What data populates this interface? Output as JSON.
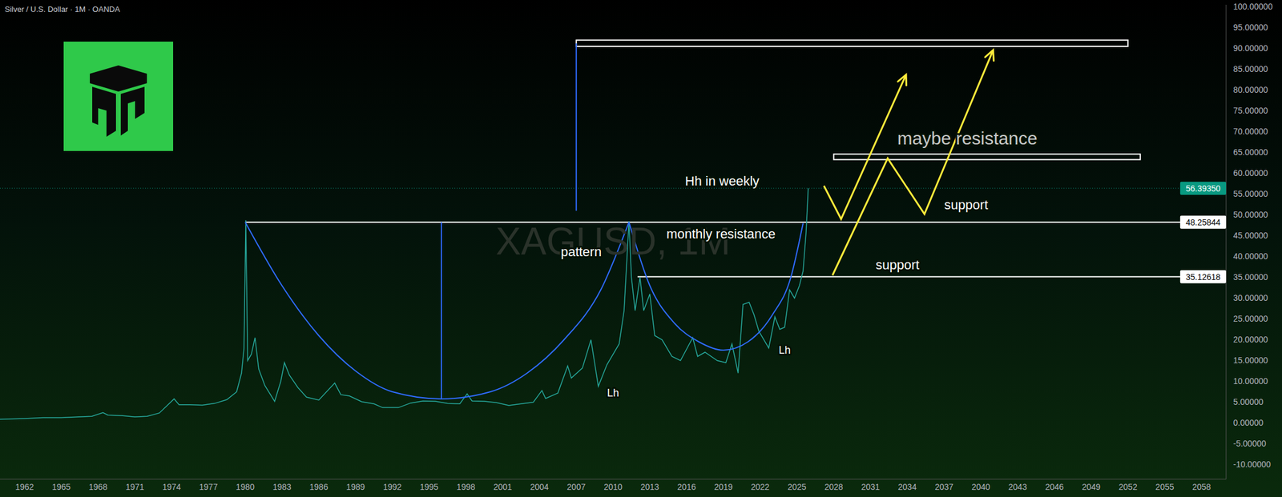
{
  "chart_data": {
    "type": "line",
    "title": "Silver / U.S. Dollar · 1M · OANDA",
    "watermark": "XAGUSD, 1M",
    "x": [
      1960,
      1962,
      1963.5,
      1965,
      1967.5,
      1968.4,
      1968.8,
      1970,
      1971,
      1972,
      1973,
      1974.2,
      1974.6,
      1975.5,
      1976.5,
      1977.5,
      1978.5,
      1979.3,
      1979.7,
      1979.9,
      1980.05,
      1980.2,
      1980.5,
      1980.8,
      1981.1,
      1981.6,
      1982.4,
      1982.9,
      1983.2,
      1983.6,
      1984.3,
      1985,
      1986,
      1987.3,
      1987.8,
      1988.5,
      1989.5,
      1990.5,
      1991.2,
      1992.5,
      1993.5,
      1994.5,
      1995.5,
      1996.5,
      1997.5,
      1998.1,
      1998.5,
      1999.5,
      2000.5,
      2001.5,
      2002.5,
      2003.5,
      2004.2,
      2004.5,
      2005.5,
      2006.3,
      2006.6,
      2007.5,
      2008.2,
      2008.8,
      2009.5,
      2010.5,
      2010.9,
      2011.3,
      2011.5,
      2011.8,
      2012.2,
      2012.5,
      2013,
      2013.4,
      2014,
      2014.8,
      2015.5,
      2016.5,
      2016.9,
      2017.5,
      2018.5,
      2019.2,
      2019.7,
      2020.2,
      2020.6,
      2021.1,
      2021.5,
      2021.9,
      2022.7,
      2023.2,
      2023.6,
      2024,
      2024.4,
      2024.8,
      2025.2,
      2025.5,
      2025.75,
      2025.92
    ],
    "values": [
      0.91,
      1.08,
      1.29,
      1.29,
      1.6,
      2.5,
      1.9,
      1.75,
      1.45,
      1.6,
      2.4,
      5.8,
      4.4,
      4.4,
      4.3,
      4.7,
      5.6,
      7.5,
      12,
      18,
      48.7,
      15,
      16.5,
      20.5,
      13,
      9,
      5.2,
      10,
      14.5,
      11.5,
      8.5,
      6.2,
      5.5,
      9.6,
      6.8,
      6.5,
      5.1,
      4.6,
      3.7,
      3.7,
      4.8,
      5.3,
      5.2,
      4.7,
      4.6,
      7,
      5.3,
      5.2,
      4.9,
      4.2,
      4.6,
      5,
      7.8,
      5.9,
      7.2,
      13.7,
      10.8,
      13.2,
      20,
      8.8,
      14,
      19,
      27,
      48.5,
      35,
      27,
      35,
      27,
      31,
      21,
      20,
      16,
      15,
      20.5,
      16,
      17,
      15,
      14.5,
      19,
      12,
      28.5,
      29,
      26,
      22,
      18,
      25.5,
      22.5,
      23,
      32,
      30,
      33,
      36.5,
      46,
      56.3935
    ],
    "color": "#26a69a",
    "xlim": [
      1960,
      2060
    ],
    "xticks": [
      1962,
      1965,
      1968,
      1971,
      1974,
      1977,
      1980,
      1983,
      1986,
      1989,
      1992,
      1995,
      1998,
      2001,
      2004,
      2007,
      2010,
      2013,
      2016,
      2019,
      2022,
      2025,
      2028,
      2031,
      2034,
      2037,
      2040,
      2043,
      2046,
      2049,
      2052,
      2055,
      2058
    ],
    "ylim": [
      -13.5,
      100.5
    ],
    "yticks": [
      {
        "value": -10,
        "label": "-10.00000"
      },
      {
        "value": -5,
        "label": "-5.00000"
      },
      {
        "value": 0,
        "label": "0.00000"
      },
      {
        "value": 5,
        "label": "5.00000"
      },
      {
        "value": 10,
        "label": "10.00000"
      },
      {
        "value": 15,
        "label": "15.00000"
      },
      {
        "value": 20,
        "label": "20.00000"
      },
      {
        "value": 25,
        "label": "25.00000"
      },
      {
        "value": 30,
        "label": "30.00000"
      },
      {
        "value": 35,
        "label": "35.00000"
      },
      {
        "value": 40,
        "label": "40.00000"
      },
      {
        "value": 45,
        "label": "45.00000"
      },
      {
        "value": 50,
        "label": "50.00000"
      },
      {
        "value": 55,
        "label": "55.00000"
      },
      {
        "value": 60,
        "label": "60.00000"
      },
      {
        "value": 65,
        "label": "65.00000"
      },
      {
        "value": 70,
        "label": "70.00000"
      },
      {
        "value": 75,
        "label": "75.00000"
      },
      {
        "value": 80,
        "label": "80.00000"
      },
      {
        "value": 85,
        "label": "85.00000"
      },
      {
        "value": 90,
        "label": "90.00000"
      },
      {
        "value": 95,
        "label": "95.00000"
      },
      {
        "value": 100,
        "label": "100.00000"
      }
    ],
    "grid": false,
    "price_labels": [
      {
        "value": 56.3935,
        "label": "56.39350",
        "color": "#089981",
        "line_style": "dotted"
      },
      {
        "value": 48.25844,
        "label": "48.25844",
        "color": "#ffffff"
      },
      {
        "value": 35.12618,
        "label": "35.12618",
        "color": "#ffffff"
      }
    ],
    "levels": [
      {
        "y": 48.25844,
        "x": [
          1980,
          2060
        ],
        "color": "#ffffff"
      },
      {
        "y": 35.12618,
        "x": [
          2012,
          2060
        ],
        "color": "#ffffff"
      }
    ],
    "zones": [
      {
        "x": [
          2007,
          2052
        ],
        "y": [
          90.5,
          92
        ],
        "color": "#ffffff"
      },
      {
        "x": [
          2028,
          2053
        ],
        "y": [
          63.3,
          64.6
        ],
        "color": "#ffffff"
      }
    ],
    "drawings": [
      {
        "type": "curve",
        "color": "#2f6bff",
        "points": [
          [
            1980,
            48.26
          ],
          [
            1983,
            33
          ],
          [
            1986,
            21
          ],
          [
            1989,
            12.5
          ],
          [
            1992,
            7.5
          ],
          [
            1996,
            5.8
          ],
          [
            2000,
            7.5
          ],
          [
            2003,
            12
          ],
          [
            2006,
            20
          ],
          [
            2009,
            32
          ],
          [
            2011.3,
            48.26
          ]
        ]
      },
      {
        "type": "curve",
        "color": "#2f6bff",
        "points": [
          [
            2011.3,
            48.26
          ],
          [
            2013,
            33
          ],
          [
            2015,
            24
          ],
          [
            2017,
            19.5
          ],
          [
            2019,
            17.5
          ],
          [
            2021,
            19.5
          ],
          [
            2023,
            26
          ],
          [
            2024.5,
            35
          ],
          [
            2025.5,
            48
          ]
        ]
      },
      {
        "type": "line",
        "color": "#2f6bff",
        "points": [
          [
            1996,
            5.8
          ],
          [
            1996,
            48.26
          ]
        ]
      },
      {
        "type": "line",
        "color": "#2f6bff",
        "points": [
          [
            2007,
            51
          ],
          [
            2007,
            91.2
          ]
        ]
      },
      {
        "type": "line",
        "color": "#ffeb3b",
        "marker": "arrow",
        "points": [
          [
            2027.2,
            57
          ],
          [
            2028.6,
            49
          ],
          [
            2033.9,
            83.7
          ]
        ]
      },
      {
        "type": "line",
        "color": "#ffeb3b",
        "marker": "arrow",
        "points": [
          [
            2027.9,
            35.5
          ],
          [
            2032.4,
            63.6
          ],
          [
            2035.4,
            50.2
          ],
          [
            2041,
            89.6
          ]
        ]
      }
    ],
    "annotations": [
      {
        "text": "Hh in weekly",
        "x": 2018.9,
        "y": 58.2,
        "color": "#ffffff"
      },
      {
        "text": "maybe resistance",
        "x": 2038.9,
        "y": 68.5,
        "color": "#c8c8c8"
      },
      {
        "text": "support",
        "x": 2038.8,
        "y": 52.5,
        "color": "#ffffff"
      },
      {
        "text": "support",
        "x": 2033.2,
        "y": 38,
        "color": "#ffffff"
      },
      {
        "text": "monthly resistance",
        "x": 2018.8,
        "y": 45.5,
        "color": "#ffffff"
      },
      {
        "text": "pattern",
        "x": 2007.4,
        "y": 41.2,
        "color": "#ffffff"
      },
      {
        "text": "Lh",
        "x": 2010,
        "y": 7.2,
        "color": "#ffffff"
      },
      {
        "text": "Lh",
        "x": 2024,
        "y": 17.5,
        "color": "#ffffff"
      }
    ]
  }
}
